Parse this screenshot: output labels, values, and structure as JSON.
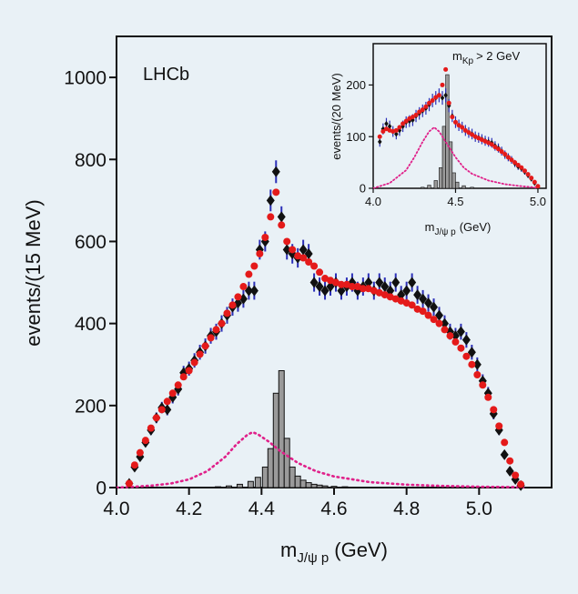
{
  "colors": {
    "background": "#e9f1f6",
    "data_points": "#111111",
    "error_bars": "#2b2fb8",
    "model_points": "#e41a1a",
    "pc_component": "#e0218a",
    "lambda_star_fill": "#9a9a9a"
  },
  "chart_data": [
    {
      "panel": "main",
      "type": "scatter",
      "title": "LHCb",
      "xlabel_main": "m",
      "xlabel_sub": "J/ψ p",
      "xlabel_unit": "(GeV)",
      "ylabel": "events/(15 MeV)",
      "xlim": [
        4.0,
        5.2
      ],
      "ylim": [
        0,
        1100
      ],
      "xticks": [
        "4.0",
        "4.2",
        "4.4",
        "4.6",
        "4.8",
        "5.0"
      ],
      "yticks": [
        "0",
        "200",
        "400",
        "600",
        "800",
        "1000"
      ],
      "grid": false,
      "data": [
        [
          4.035,
          10
        ],
        [
          4.05,
          50
        ],
        [
          4.065,
          75
        ],
        [
          4.08,
          110
        ],
        [
          4.095,
          140
        ],
        [
          4.11,
          170
        ],
        [
          4.125,
          195
        ],
        [
          4.14,
          190
        ],
        [
          4.155,
          220
        ],
        [
          4.17,
          240
        ],
        [
          4.185,
          280
        ],
        [
          4.2,
          290
        ],
        [
          4.215,
          310
        ],
        [
          4.23,
          330
        ],
        [
          4.245,
          345
        ],
        [
          4.26,
          370
        ],
        [
          4.275,
          380
        ],
        [
          4.29,
          400
        ],
        [
          4.305,
          420
        ],
        [
          4.32,
          440
        ],
        [
          4.335,
          450
        ],
        [
          4.35,
          460
        ],
        [
          4.365,
          480
        ],
        [
          4.38,
          480
        ],
        [
          4.395,
          580
        ],
        [
          4.41,
          600
        ],
        [
          4.425,
          700
        ],
        [
          4.44,
          770
        ],
        [
          4.455,
          660
        ],
        [
          4.47,
          580
        ],
        [
          4.485,
          570
        ],
        [
          4.5,
          560
        ],
        [
          4.515,
          580
        ],
        [
          4.53,
          570
        ],
        [
          4.545,
          500
        ],
        [
          4.56,
          490
        ],
        [
          4.575,
          480
        ],
        [
          4.59,
          490
        ],
        [
          4.605,
          500
        ],
        [
          4.62,
          480
        ],
        [
          4.635,
          490
        ],
        [
          4.65,
          500
        ],
        [
          4.665,
          480
        ],
        [
          4.68,
          490
        ],
        [
          4.695,
          500
        ],
        [
          4.71,
          480
        ],
        [
          4.725,
          500
        ],
        [
          4.74,
          490
        ],
        [
          4.755,
          480
        ],
        [
          4.77,
          500
        ],
        [
          4.785,
          470
        ],
        [
          4.8,
          480
        ],
        [
          4.815,
          500
        ],
        [
          4.83,
          470
        ],
        [
          4.845,
          460
        ],
        [
          4.86,
          450
        ],
        [
          4.875,
          440
        ],
        [
          4.89,
          420
        ],
        [
          4.905,
          400
        ],
        [
          4.92,
          380
        ],
        [
          4.935,
          370
        ],
        [
          4.95,
          380
        ],
        [
          4.965,
          360
        ],
        [
          4.98,
          330
        ],
        [
          4.995,
          300
        ],
        [
          5.01,
          260
        ],
        [
          5.025,
          230
        ],
        [
          5.04,
          180
        ],
        [
          5.055,
          140
        ],
        [
          5.07,
          80
        ],
        [
          5.085,
          40
        ],
        [
          5.1,
          20
        ],
        [
          5.115,
          5
        ]
      ],
      "model": [
        [
          4.035,
          10
        ],
        [
          4.05,
          55
        ],
        [
          4.065,
          85
        ],
        [
          4.08,
          115
        ],
        [
          4.095,
          145
        ],
        [
          4.11,
          170
        ],
        [
          4.125,
          190
        ],
        [
          4.14,
          210
        ],
        [
          4.155,
          230
        ],
        [
          4.17,
          250
        ],
        [
          4.185,
          270
        ],
        [
          4.2,
          285
        ],
        [
          4.215,
          305
        ],
        [
          4.23,
          325
        ],
        [
          4.245,
          345
        ],
        [
          4.26,
          365
        ],
        [
          4.275,
          385
        ],
        [
          4.29,
          400
        ],
        [
          4.305,
          425
        ],
        [
          4.32,
          445
        ],
        [
          4.335,
          465
        ],
        [
          4.35,
          490
        ],
        [
          4.365,
          520
        ],
        [
          4.38,
          540
        ],
        [
          4.395,
          570
        ],
        [
          4.41,
          610
        ],
        [
          4.425,
          660
        ],
        [
          4.44,
          720
        ],
        [
          4.455,
          640
        ],
        [
          4.47,
          600
        ],
        [
          4.485,
          580
        ],
        [
          4.5,
          565
        ],
        [
          4.515,
          560
        ],
        [
          4.53,
          550
        ],
        [
          4.545,
          540
        ],
        [
          4.56,
          525
        ],
        [
          4.575,
          510
        ],
        [
          4.59,
          505
        ],
        [
          4.605,
          500
        ],
        [
          4.62,
          495
        ],
        [
          4.635,
          495
        ],
        [
          4.65,
          490
        ],
        [
          4.665,
          490
        ],
        [
          4.68,
          485
        ],
        [
          4.695,
          485
        ],
        [
          4.71,
          480
        ],
        [
          4.725,
          475
        ],
        [
          4.74,
          470
        ],
        [
          4.755,
          465
        ],
        [
          4.77,
          460
        ],
        [
          4.785,
          455
        ],
        [
          4.8,
          450
        ],
        [
          4.815,
          445
        ],
        [
          4.83,
          435
        ],
        [
          4.845,
          430
        ],
        [
          4.86,
          420
        ],
        [
          4.875,
          410
        ],
        [
          4.89,
          400
        ],
        [
          4.905,
          385
        ],
        [
          4.92,
          370
        ],
        [
          4.935,
          355
        ],
        [
          4.95,
          340
        ],
        [
          4.965,
          320
        ],
        [
          4.98,
          300
        ],
        [
          4.995,
          275
        ],
        [
          5.01,
          250
        ],
        [
          5.025,
          220
        ],
        [
          5.04,
          190
        ],
        [
          5.055,
          150
        ],
        [
          5.07,
          110
        ],
        [
          5.085,
          65
        ],
        [
          5.1,
          30
        ],
        [
          5.115,
          8
        ]
      ],
      "pc_curve": [
        [
          4.0,
          0
        ],
        [
          4.05,
          2
        ],
        [
          4.1,
          5
        ],
        [
          4.15,
          10
        ],
        [
          4.2,
          20
        ],
        [
          4.25,
          40
        ],
        [
          4.3,
          75
        ],
        [
          4.33,
          105
        ],
        [
          4.36,
          128
        ],
        [
          4.375,
          135
        ],
        [
          4.39,
          130
        ],
        [
          4.42,
          112
        ],
        [
          4.45,
          90
        ],
        [
          4.5,
          60
        ],
        [
          4.55,
          40
        ],
        [
          4.6,
          27
        ],
        [
          4.7,
          13
        ],
        [
          4.8,
          7
        ],
        [
          4.9,
          4
        ],
        [
          5.0,
          2
        ],
        [
          5.1,
          1
        ],
        [
          5.13,
          0
        ]
      ],
      "histogram": [
        [
          4.25,
          0
        ],
        [
          4.28,
          2
        ],
        [
          4.31,
          4
        ],
        [
          4.34,
          8
        ],
        [
          4.37,
          15
        ],
        [
          4.39,
          25
        ],
        [
          4.41,
          50
        ],
        [
          4.425,
          95
        ],
        [
          4.44,
          230
        ],
        [
          4.455,
          285
        ],
        [
          4.47,
          120
        ],
        [
          4.485,
          50
        ],
        [
          4.5,
          28
        ],
        [
          4.515,
          18
        ],
        [
          4.53,
          12
        ],
        [
          4.545,
          8
        ],
        [
          4.56,
          6
        ],
        [
          4.575,
          4
        ],
        [
          4.6,
          3
        ],
        [
          4.63,
          2
        ],
        [
          4.66,
          1
        ],
        [
          4.7,
          0
        ]
      ],
      "histogram_bin": 0.015
    },
    {
      "panel": "inset",
      "type": "scatter",
      "title": "m",
      "title_sub": "Kp",
      "title_tail": "> 2 GeV",
      "xlabel_main": "m",
      "xlabel_sub": "J/ψ p",
      "xlabel_unit": "(GeV)",
      "ylabel": "events/(20 MeV)",
      "xlim": [
        4.0,
        5.05
      ],
      "ylim": [
        0,
        280
      ],
      "xticks": [
        "4.0",
        "4.5",
        "5.0"
      ],
      "yticks": [
        "0",
        "100",
        "200"
      ],
      "grid": false,
      "data": [
        [
          4.04,
          90
        ],
        [
          4.06,
          115
        ],
        [
          4.08,
          125
        ],
        [
          4.1,
          120
        ],
        [
          4.12,
          110
        ],
        [
          4.14,
          105
        ],
        [
          4.16,
          112
        ],
        [
          4.18,
          120
        ],
        [
          4.2,
          128
        ],
        [
          4.22,
          130
        ],
        [
          4.24,
          132
        ],
        [
          4.26,
          140
        ],
        [
          4.28,
          145
        ],
        [
          4.3,
          150
        ],
        [
          4.32,
          155
        ],
        [
          4.34,
          162
        ],
        [
          4.36,
          170
        ],
        [
          4.38,
          175
        ],
        [
          4.4,
          180
        ],
        [
          4.42,
          175
        ],
        [
          4.44,
          180
        ],
        [
          4.46,
          160
        ],
        [
          4.48,
          140
        ],
        [
          4.5,
          128
        ],
        [
          4.52,
          122
        ],
        [
          4.54,
          118
        ],
        [
          4.56,
          112
        ],
        [
          4.58,
          108
        ],
        [
          4.6,
          105
        ],
        [
          4.62,
          100
        ],
        [
          4.64,
          98
        ],
        [
          4.66,
          95
        ],
        [
          4.68,
          92
        ],
        [
          4.7,
          90
        ],
        [
          4.72,
          88
        ],
        [
          4.74,
          82
        ],
        [
          4.76,
          78
        ],
        [
          4.78,
          72
        ],
        [
          4.8,
          65
        ],
        [
          4.82,
          60
        ],
        [
          4.84,
          55
        ],
        [
          4.86,
          48
        ],
        [
          4.88,
          42
        ],
        [
          4.9,
          38
        ],
        [
          4.92,
          32
        ],
        [
          4.94,
          25
        ],
        [
          4.96,
          18
        ],
        [
          4.98,
          10
        ],
        [
          5.0,
          3
        ]
      ],
      "model": [
        [
          4.04,
          100
        ],
        [
          4.06,
          110
        ],
        [
          4.08,
          115
        ],
        [
          4.1,
          112
        ],
        [
          4.12,
          110
        ],
        [
          4.14,
          112
        ],
        [
          4.16,
          118
        ],
        [
          4.18,
          125
        ],
        [
          4.2,
          130
        ],
        [
          4.22,
          135
        ],
        [
          4.24,
          138
        ],
        [
          4.26,
          142
        ],
        [
          4.28,
          148
        ],
        [
          4.3,
          152
        ],
        [
          4.32,
          158
        ],
        [
          4.34,
          165
        ],
        [
          4.36,
          170
        ],
        [
          4.38,
          176
        ],
        [
          4.4,
          180
        ],
        [
          4.42,
          200
        ],
        [
          4.44,
          230
        ],
        [
          4.46,
          165
        ],
        [
          4.48,
          138
        ],
        [
          4.5,
          128
        ],
        [
          4.52,
          122
        ],
        [
          4.54,
          118
        ],
        [
          4.56,
          112
        ],
        [
          4.58,
          108
        ],
        [
          4.6,
          104
        ],
        [
          4.62,
          100
        ],
        [
          4.64,
          97
        ],
        [
          4.66,
          94
        ],
        [
          4.68,
          91
        ],
        [
          4.7,
          88
        ],
        [
          4.72,
          85
        ],
        [
          4.74,
          80
        ],
        [
          4.76,
          76
        ],
        [
          4.78,
          71
        ],
        [
          4.8,
          66
        ],
        [
          4.82,
          60
        ],
        [
          4.84,
          55
        ],
        [
          4.86,
          50
        ],
        [
          4.88,
          45
        ],
        [
          4.9,
          40
        ],
        [
          4.92,
          34
        ],
        [
          4.94,
          27
        ],
        [
          4.96,
          20
        ],
        [
          4.98,
          12
        ],
        [
          5.0,
          4
        ]
      ],
      "pc_curve": [
        [
          4.0,
          0
        ],
        [
          4.1,
          10
        ],
        [
          4.2,
          35
        ],
        [
          4.25,
          60
        ],
        [
          4.3,
          90
        ],
        [
          4.34,
          110
        ],
        [
          4.37,
          118
        ],
        [
          4.4,
          110
        ],
        [
          4.44,
          90
        ],
        [
          4.5,
          60
        ],
        [
          4.55,
          40
        ],
        [
          4.6,
          28
        ],
        [
          4.7,
          15
        ],
        [
          4.8,
          8
        ],
        [
          4.9,
          4
        ],
        [
          5.0,
          1
        ]
      ],
      "histogram": [
        [
          4.3,
          2
        ],
        [
          4.34,
          6
        ],
        [
          4.38,
          15
        ],
        [
          4.41,
          40
        ],
        [
          4.43,
          120
        ],
        [
          4.45,
          220
        ],
        [
          4.47,
          90
        ],
        [
          4.49,
          30
        ],
        [
          4.51,
          12
        ],
        [
          4.55,
          5
        ],
        [
          4.6,
          2
        ],
        [
          4.65,
          0
        ]
      ],
      "histogram_bin": 0.02
    }
  ]
}
